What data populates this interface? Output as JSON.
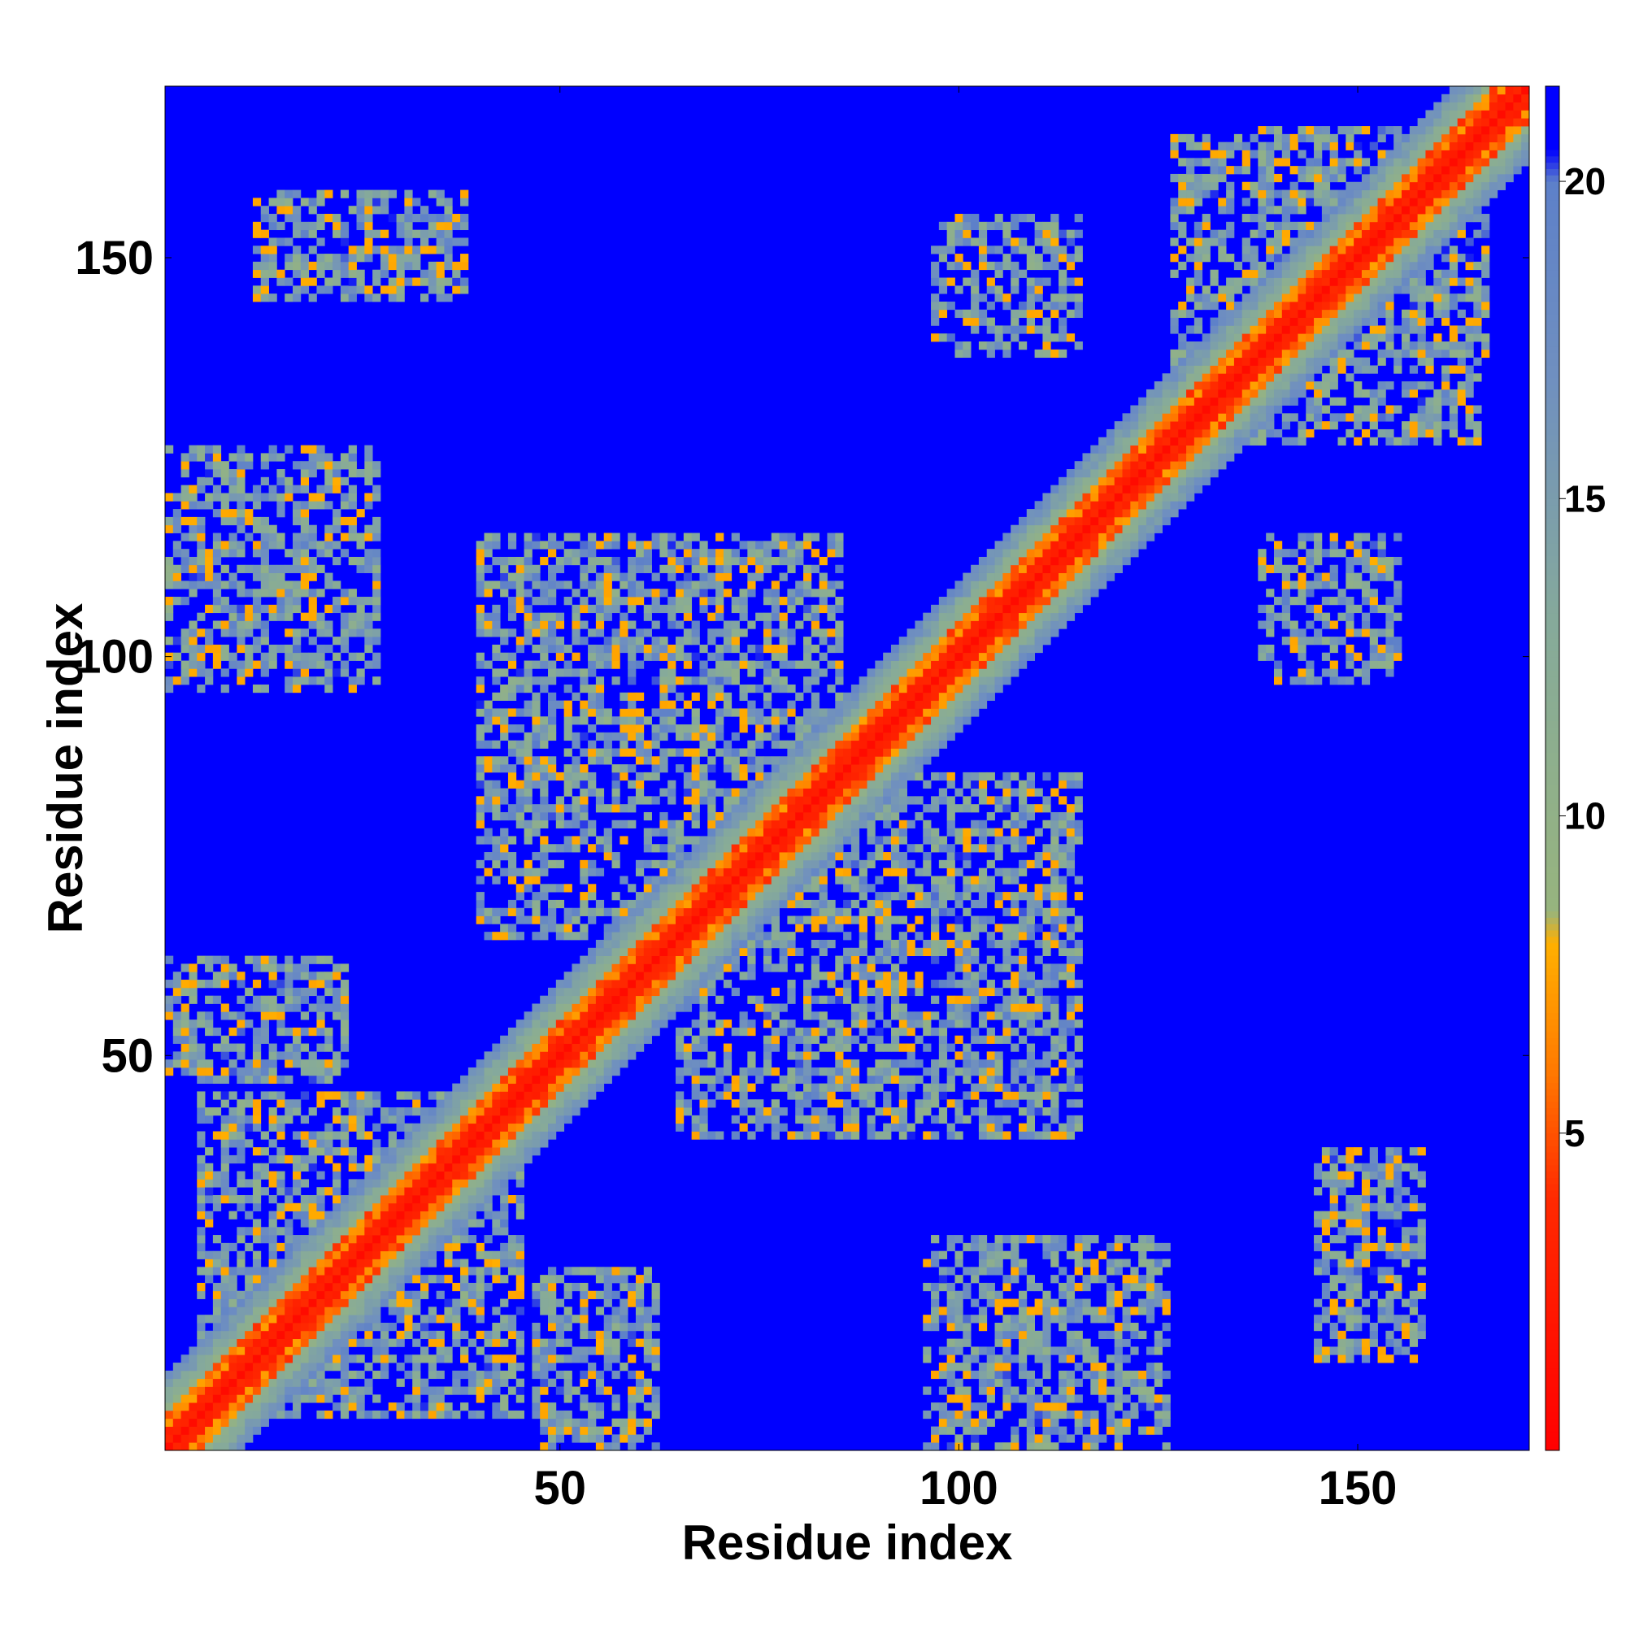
{
  "chart_data": {
    "type": "heatmap",
    "title": "",
    "xlabel": "Residue index",
    "ylabel": "Residue index",
    "xlim": [
      1,
      171
    ],
    "ylim": [
      1,
      171
    ],
    "x_ticks": [
      50,
      100,
      150
    ],
    "y_ticks": [
      50,
      100,
      150
    ],
    "colorbar": {
      "range": [
        0,
        21.5
      ],
      "ticks": [
        5,
        10,
        15,
        20
      ],
      "stops": [
        {
          "value": 0,
          "color": "#ff0000"
        },
        {
          "value": 4,
          "color": "#ff2a00"
        },
        {
          "value": 6,
          "color": "#ff7a00"
        },
        {
          "value": 8,
          "color": "#ffb000"
        },
        {
          "value": 8.5,
          "color": "#97b47e"
        },
        {
          "value": 13,
          "color": "#86aa9a"
        },
        {
          "value": 17,
          "color": "#6f8fc0"
        },
        {
          "value": 20,
          "color": "#5d80c9"
        },
        {
          "value": 20.5,
          "color": "#0000ff"
        }
      ]
    },
    "contact_regions": [
      {
        "x": [
          1,
          171
        ],
        "y": [
          1,
          171
        ],
        "type": "diagonal"
      },
      {
        "x": [
          5,
          40
        ],
        "y": [
          5,
          45
        ],
        "type": "block"
      },
      {
        "x": [
          40,
          75
        ],
        "y": [
          65,
          110
        ],
        "type": "block"
      },
      {
        "x": [
          65,
          115
        ],
        "y": [
          40,
          85
        ],
        "type": "block"
      },
      {
        "x": [
          5,
          27
        ],
        "y": [
          100,
          125
        ],
        "type": "block"
      },
      {
        "x": [
          5,
          22
        ],
        "y": [
          47,
          62
        ],
        "type": "block"
      },
      {
        "x": [
          48,
          62
        ],
        "y": [
          1,
          23
        ],
        "type": "block"
      },
      {
        "x": [
          96,
          126
        ],
        "y": [
          1,
          27
        ],
        "type": "block"
      },
      {
        "x": [
          97,
          115
        ],
        "y": [
          140,
          155
        ],
        "type": "block"
      },
      {
        "x": [
          12,
          38
        ],
        "y": [
          145,
          158
        ],
        "type": "block"
      },
      {
        "x": [
          135,
          165
        ],
        "y": [
          127,
          166
        ],
        "type": "block"
      },
      {
        "x": [
          138,
          150
        ],
        "y": [
          100,
          115
        ],
        "type": "block"
      },
      {
        "x": [
          145,
          155
        ],
        "y": [
          15,
          33
        ],
        "type": "block"
      }
    ]
  }
}
